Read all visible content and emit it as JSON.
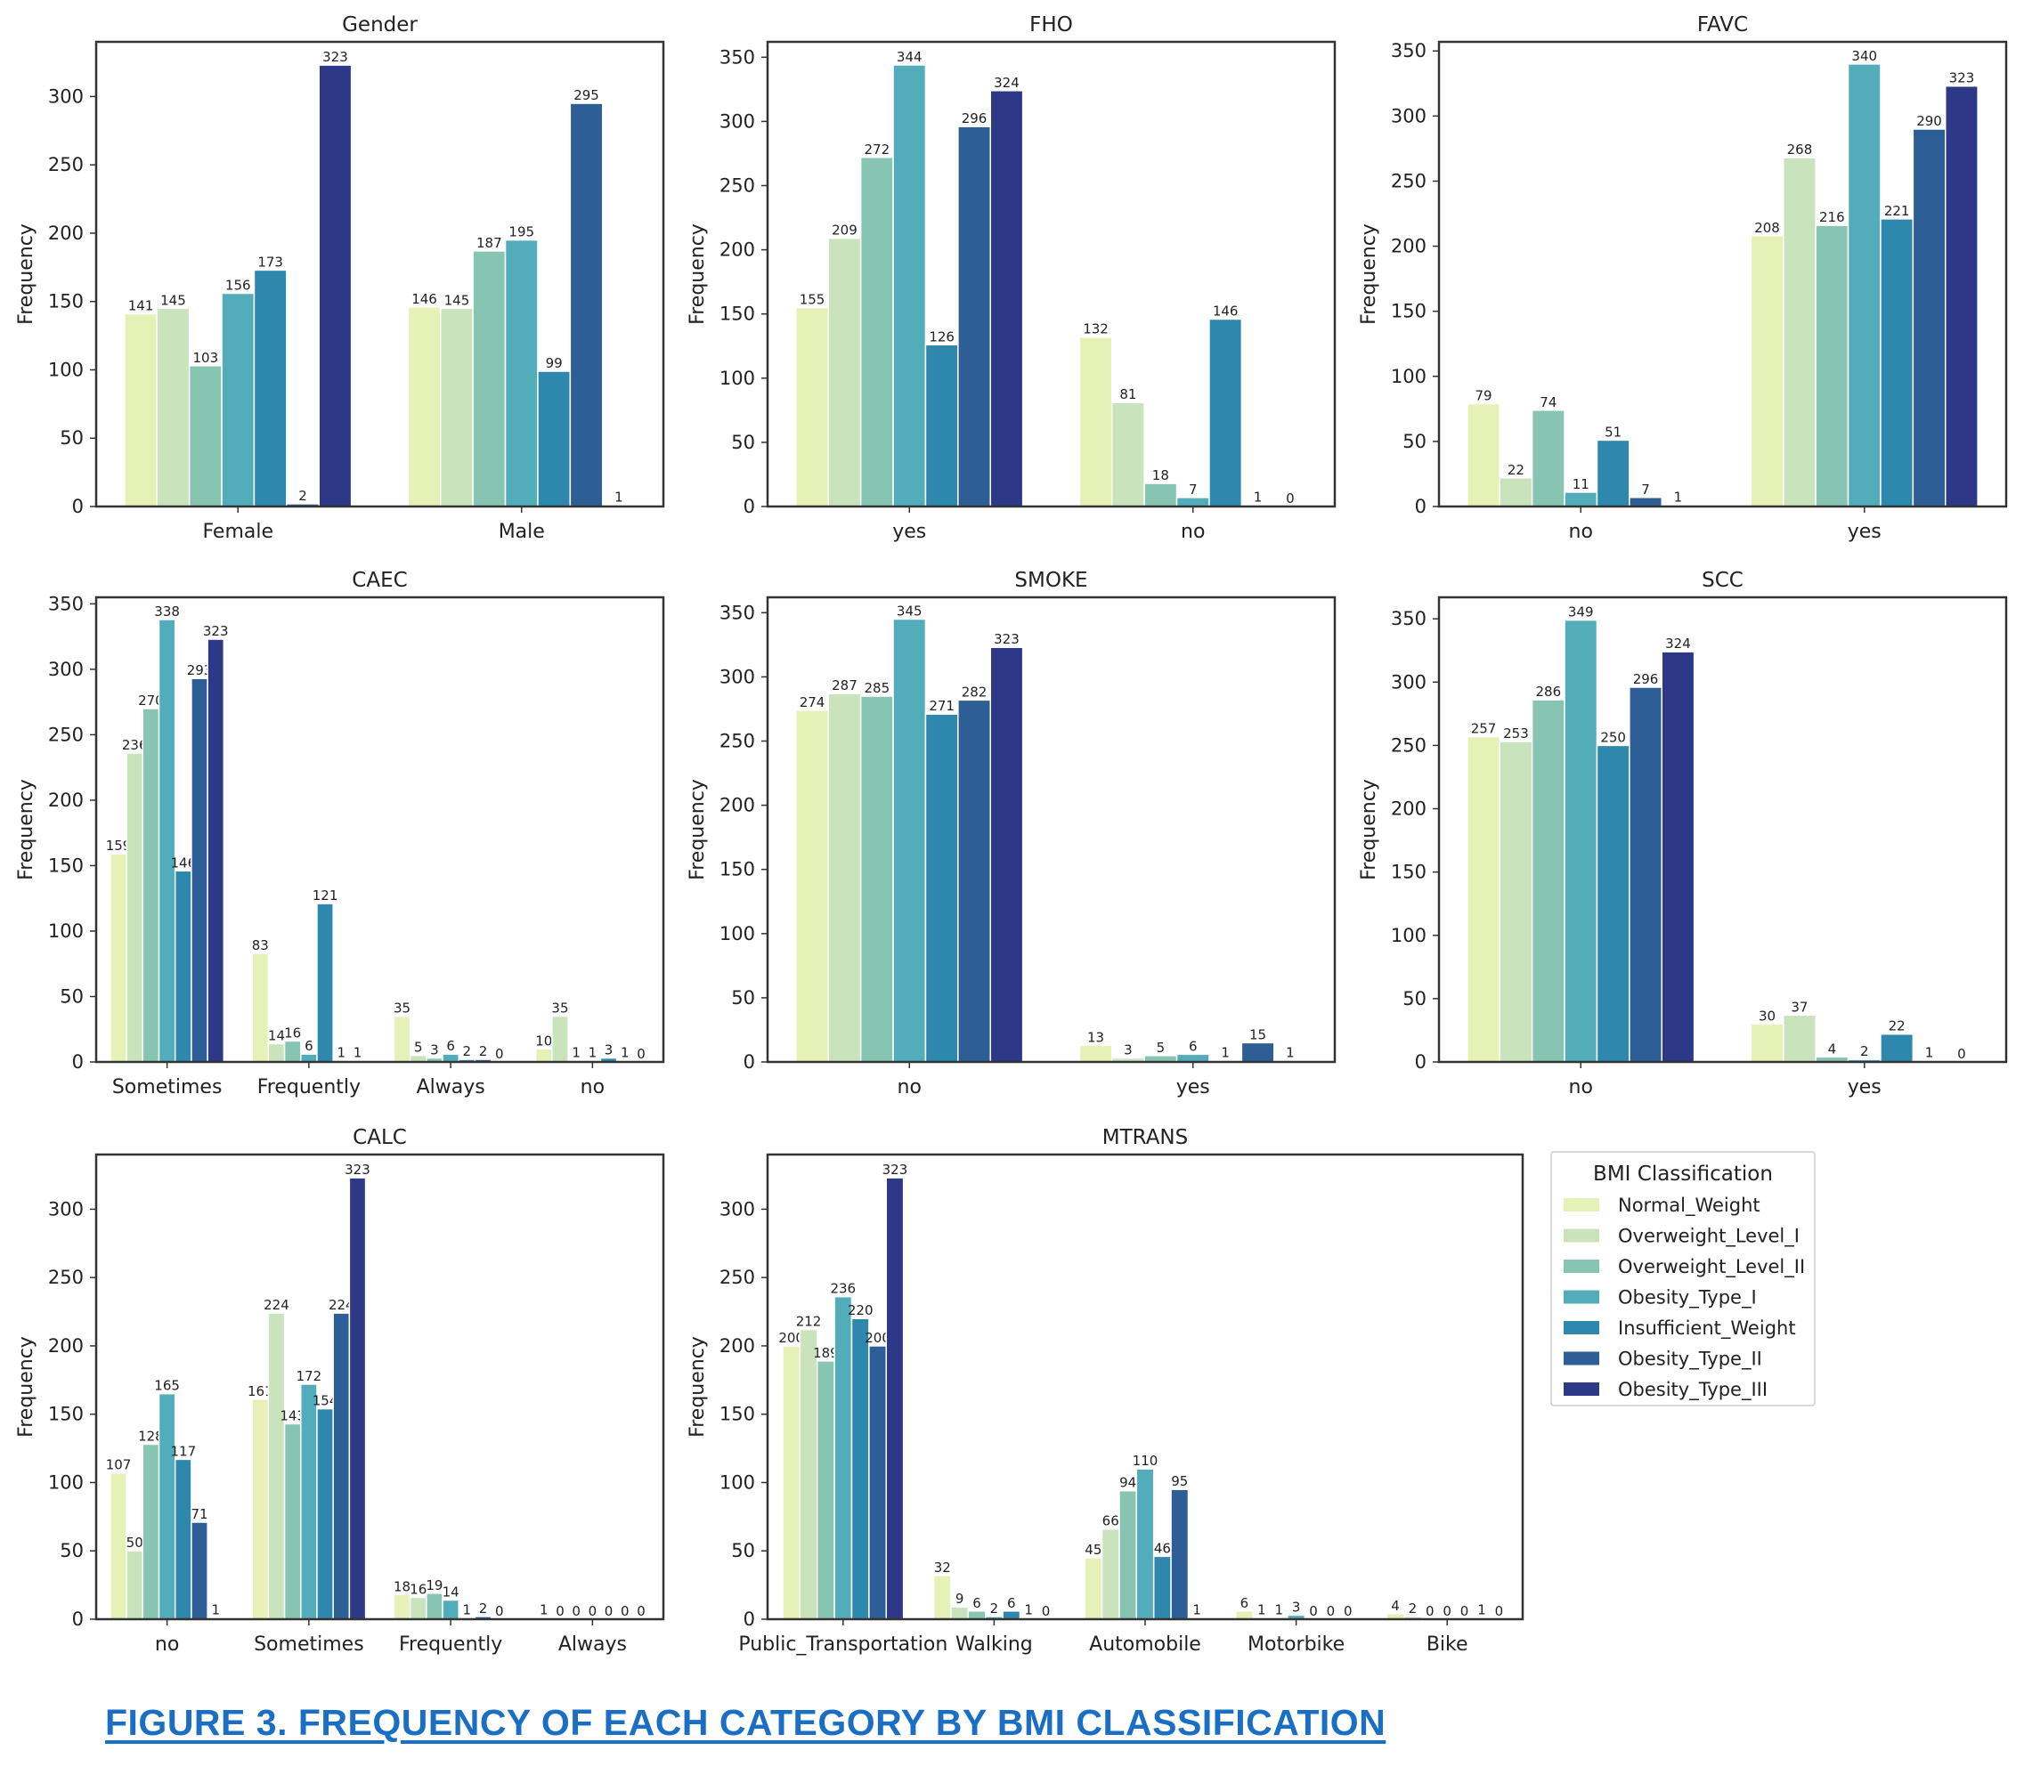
{
  "chart_data": [
    {
      "type": "bar",
      "title": "Gender",
      "ylabel": "Frequency",
      "ylim": [
        0,
        340
      ],
      "yticks": [
        0,
        50,
        100,
        150,
        200,
        250,
        300
      ],
      "categories": [
        "Female",
        "Male"
      ],
      "series": [
        {
          "name": "Normal_Weight",
          "values": [
            141,
            146
          ]
        },
        {
          "name": "Overweight_Level_I",
          "values": [
            145,
            145
          ]
        },
        {
          "name": "Overweight_Level_II",
          "values": [
            103,
            187
          ]
        },
        {
          "name": "Obesity_Type_I",
          "values": [
            156,
            195
          ]
        },
        {
          "name": "Insufficient_Weight",
          "values": [
            173,
            99
          ]
        },
        {
          "name": "Obesity_Type_II",
          "values": [
            2,
            295
          ]
        },
        {
          "name": "Obesity_Type_III",
          "values": [
            323,
            1
          ]
        }
      ]
    },
    {
      "type": "bar",
      "title": "FHO",
      "ylabel": "Frequency",
      "ylim": [
        0,
        362
      ],
      "yticks": [
        0,
        50,
        100,
        150,
        200,
        250,
        300,
        350
      ],
      "categories": [
        "yes",
        "no"
      ],
      "series": [
        {
          "name": "Normal_Weight",
          "values": [
            155,
            132
          ]
        },
        {
          "name": "Overweight_Level_I",
          "values": [
            209,
            81
          ]
        },
        {
          "name": "Overweight_Level_II",
          "values": [
            272,
            18
          ]
        },
        {
          "name": "Obesity_Type_I",
          "values": [
            344,
            7
          ]
        },
        {
          "name": "Insufficient_Weight",
          "values": [
            126,
            146
          ]
        },
        {
          "name": "Obesity_Type_II",
          "values": [
            296,
            1
          ]
        },
        {
          "name": "Obesity_Type_III",
          "values": [
            324,
            0
          ]
        }
      ]
    },
    {
      "type": "bar",
      "title": "FAVC",
      "ylabel": "Frequency",
      "ylim": [
        0,
        357
      ],
      "yticks": [
        0,
        50,
        100,
        150,
        200,
        250,
        300,
        350
      ],
      "categories": [
        "no",
        "yes"
      ],
      "series": [
        {
          "name": "Normal_Weight",
          "values": [
            79,
            208
          ]
        },
        {
          "name": "Overweight_Level_I",
          "values": [
            22,
            268
          ]
        },
        {
          "name": "Overweight_Level_II",
          "values": [
            74,
            216
          ]
        },
        {
          "name": "Obesity_Type_I",
          "values": [
            11,
            340
          ]
        },
        {
          "name": "Insufficient_Weight",
          "values": [
            51,
            221
          ]
        },
        {
          "name": "Obesity_Type_II",
          "values": [
            7,
            290
          ]
        },
        {
          "name": "Obesity_Type_III",
          "values": [
            1,
            323
          ]
        }
      ]
    },
    {
      "type": "bar",
      "title": "CAEC",
      "ylabel": "Frequency",
      "ylim": [
        0,
        355
      ],
      "yticks": [
        0,
        50,
        100,
        150,
        200,
        250,
        300,
        350
      ],
      "categories": [
        "Sometimes",
        "Frequently",
        "Always",
        "no"
      ],
      "series": [
        {
          "name": "Normal_Weight",
          "values": [
            159,
            83,
            35,
            10
          ]
        },
        {
          "name": "Overweight_Level_I",
          "values": [
            236,
            14,
            5,
            35
          ]
        },
        {
          "name": "Overweight_Level_II",
          "values": [
            270,
            16,
            3,
            1
          ]
        },
        {
          "name": "Obesity_Type_I",
          "values": [
            338,
            6,
            6,
            1
          ]
        },
        {
          "name": "Insufficient_Weight",
          "values": [
            146,
            121,
            2,
            3
          ]
        },
        {
          "name": "Obesity_Type_II",
          "values": [
            293,
            1,
            2,
            1
          ]
        },
        {
          "name": "Obesity_Type_III",
          "values": [
            323,
            1,
            0,
            0
          ]
        }
      ]
    },
    {
      "type": "bar",
      "title": "SMOKE",
      "ylabel": "Frequency",
      "ylim": [
        0,
        362
      ],
      "yticks": [
        0,
        50,
        100,
        150,
        200,
        250,
        300,
        350
      ],
      "categories": [
        "no",
        "yes"
      ],
      "series": [
        {
          "name": "Normal_Weight",
          "values": [
            274,
            13
          ]
        },
        {
          "name": "Overweight_Level_I",
          "values": [
            287,
            3
          ]
        },
        {
          "name": "Overweight_Level_II",
          "values": [
            285,
            5
          ]
        },
        {
          "name": "Obesity_Type_I",
          "values": [
            345,
            6
          ]
        },
        {
          "name": "Insufficient_Weight",
          "values": [
            271,
            1
          ]
        },
        {
          "name": "Obesity_Type_II",
          "values": [
            282,
            15
          ]
        },
        {
          "name": "Obesity_Type_III",
          "values": [
            323,
            1
          ]
        }
      ]
    },
    {
      "type": "bar",
      "title": "SCC",
      "ylabel": "Frequency",
      "ylim": [
        0,
        367
      ],
      "yticks": [
        0,
        50,
        100,
        150,
        200,
        250,
        300,
        350
      ],
      "categories": [
        "no",
        "yes"
      ],
      "series": [
        {
          "name": "Normal_Weight",
          "values": [
            257,
            30
          ]
        },
        {
          "name": "Overweight_Level_I",
          "values": [
            253,
            37
          ]
        },
        {
          "name": "Overweight_Level_II",
          "values": [
            286,
            4
          ]
        },
        {
          "name": "Obesity_Type_I",
          "values": [
            349,
            2
          ]
        },
        {
          "name": "Insufficient_Weight",
          "values": [
            250,
            22
          ]
        },
        {
          "name": "Obesity_Type_II",
          "values": [
            296,
            1
          ]
        },
        {
          "name": "Obesity_Type_III",
          "values": [
            324,
            0
          ]
        }
      ]
    },
    {
      "type": "bar",
      "title": "CALC",
      "ylabel": "Frequency",
      "ylim": [
        0,
        340
      ],
      "yticks": [
        0,
        50,
        100,
        150,
        200,
        250,
        300
      ],
      "categories": [
        "no",
        "Sometimes",
        "Frequently",
        "Always"
      ],
      "series": [
        {
          "name": "Normal_Weight",
          "values": [
            107,
            161,
            18,
            1
          ]
        },
        {
          "name": "Overweight_Level_I",
          "values": [
            50,
            224,
            16,
            0
          ]
        },
        {
          "name": "Overweight_Level_II",
          "values": [
            128,
            143,
            19,
            0
          ]
        },
        {
          "name": "Obesity_Type_I",
          "values": [
            165,
            172,
            14,
            0
          ]
        },
        {
          "name": "Insufficient_Weight",
          "values": [
            117,
            154,
            1,
            0
          ]
        },
        {
          "name": "Obesity_Type_II",
          "values": [
            71,
            224,
            2,
            0
          ]
        },
        {
          "name": "Obesity_Type_III",
          "values": [
            1,
            323,
            0,
            0
          ]
        }
      ]
    },
    {
      "type": "bar",
      "title": "MTRANS",
      "ylabel": "Frequency",
      "ylim": [
        0,
        340
      ],
      "yticks": [
        0,
        50,
        100,
        150,
        200,
        250,
        300
      ],
      "categories": [
        "Public_Transportation",
        "Walking",
        "Automobile",
        "Motorbike",
        "Bike"
      ],
      "series": [
        {
          "name": "Normal_Weight",
          "values": [
            200,
            32,
            45,
            6,
            4
          ]
        },
        {
          "name": "Overweight_Level_I",
          "values": [
            212,
            9,
            66,
            1,
            2
          ]
        },
        {
          "name": "Overweight_Level_II",
          "values": [
            189,
            6,
            94,
            1,
            0
          ]
        },
        {
          "name": "Obesity_Type_I",
          "values": [
            236,
            2,
            110,
            3,
            0
          ]
        },
        {
          "name": "Insufficient_Weight",
          "values": [
            220,
            6,
            46,
            0,
            0
          ]
        },
        {
          "name": "Obesity_Type_II",
          "values": [
            200,
            1,
            95,
            0,
            1
          ]
        },
        {
          "name": "Obesity_Type_III",
          "values": [
            323,
            0,
            1,
            0,
            0
          ]
        }
      ]
    }
  ],
  "legend": {
    "title": "BMI Classification",
    "entries": [
      "Normal_Weight",
      "Overweight_Level_I",
      "Overweight_Level_II",
      "Obesity_Type_I",
      "Insufficient_Weight",
      "Obesity_Type_II",
      "Obesity_Type_III"
    ],
    "colors": [
      "#e6f1b7",
      "#c9e3bd",
      "#88c4b2",
      "#52acb9",
      "#2e88ad",
      "#2d5f96",
      "#2d3887"
    ]
  },
  "caption": "FIGURE 3. FREQUENCY OF EACH CATEGORY BY BMI CLASSIFICATION"
}
